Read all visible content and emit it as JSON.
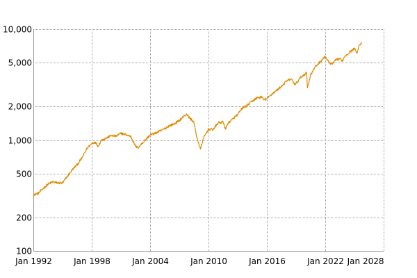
{
  "chart_data": {
    "type": "line",
    "title": "",
    "xlabel": "",
    "ylabel": "",
    "y_scale": "log",
    "grid": true,
    "legend": "none",
    "line_color": "#e08a00",
    "grid_color": "#999999",
    "xlim": [
      "Jan 1992",
      "Jan 2028"
    ],
    "ylim": [
      100,
      10000
    ],
    "x_ticks": [
      {
        "date": "1992-01",
        "label": "Jan 1992"
      },
      {
        "date": "1998-01",
        "label": "Jan 1998"
      },
      {
        "date": "2004-01",
        "label": "Jan 2004"
      },
      {
        "date": "2010-01",
        "label": "Jan 2010"
      },
      {
        "date": "2016-01",
        "label": "Jan 2016"
      },
      {
        "date": "2022-01",
        "label": "Jan 2022"
      },
      {
        "date": "2028-01",
        "label": "Jan 2028"
      }
    ],
    "y_ticks": [
      {
        "value": 100,
        "label": "100"
      },
      {
        "value": 200,
        "label": "200"
      },
      {
        "value": 500,
        "label": "500"
      },
      {
        "value": 1000,
        "label": "1,000"
      },
      {
        "value": 2000,
        "label": "2,000"
      },
      {
        "value": 5000,
        "label": "5,000"
      },
      {
        "value": 10000,
        "label": "10,000"
      }
    ],
    "series": [
      {
        "points": [
          [
            "1992-01",
            320
          ],
          [
            "1992-07",
            330
          ],
          [
            "1993-01",
            365
          ],
          [
            "1993-07",
            400
          ],
          [
            "1994-01",
            420
          ],
          [
            "1994-07",
            410
          ],
          [
            "1995-01",
            410
          ],
          [
            "1995-07",
            470
          ],
          [
            "1996-01",
            540
          ],
          [
            "1996-07",
            600
          ],
          [
            "1997-01",
            690
          ],
          [
            "1997-07",
            840
          ],
          [
            "1998-01",
            930
          ],
          [
            "1998-05",
            960
          ],
          [
            "1998-09",
            880
          ],
          [
            "1999-01",
            1000
          ],
          [
            "1999-07",
            1040
          ],
          [
            "2000-01",
            1100
          ],
          [
            "2000-07",
            1080
          ],
          [
            "2001-01",
            1150
          ],
          [
            "2001-07",
            1120
          ],
          [
            "2002-01",
            1080
          ],
          [
            "2002-07",
            880
          ],
          [
            "2002-10",
            850
          ],
          [
            "2003-01",
            900
          ],
          [
            "2003-07",
            1000
          ],
          [
            "2004-01",
            1110
          ],
          [
            "2004-07",
            1150
          ],
          [
            "2005-01",
            1200
          ],
          [
            "2005-07",
            1270
          ],
          [
            "2006-01",
            1350
          ],
          [
            "2006-07",
            1400
          ],
          [
            "2007-01",
            1500
          ],
          [
            "2007-07",
            1650
          ],
          [
            "2007-10",
            1720
          ],
          [
            "2008-01",
            1600
          ],
          [
            "2008-07",
            1450
          ],
          [
            "2008-10",
            1100
          ],
          [
            "2009-03",
            830
          ],
          [
            "2009-07",
            1050
          ],
          [
            "2010-01",
            1250
          ],
          [
            "2010-07",
            1250
          ],
          [
            "2011-01",
            1430
          ],
          [
            "2011-07",
            1450
          ],
          [
            "2011-10",
            1250
          ],
          [
            "2012-01",
            1420
          ],
          [
            "2012-07",
            1550
          ],
          [
            "2013-01",
            1700
          ],
          [
            "2013-07",
            1950
          ],
          [
            "2014-01",
            2050
          ],
          [
            "2014-07",
            2250
          ],
          [
            "2015-01",
            2400
          ],
          [
            "2015-07",
            2450
          ],
          [
            "2015-09",
            2300
          ],
          [
            "2016-01",
            2350
          ],
          [
            "2016-07",
            2600
          ],
          [
            "2017-01",
            2800
          ],
          [
            "2017-07",
            3050
          ],
          [
            "2018-01",
            3400
          ],
          [
            "2018-07",
            3550
          ],
          [
            "2018-12",
            3150
          ],
          [
            "2019-07",
            3700
          ],
          [
            "2020-02",
            4050
          ],
          [
            "2020-03",
            2950
          ],
          [
            "2020-07",
            3900
          ],
          [
            "2021-01",
            4600
          ],
          [
            "2021-07",
            5100
          ],
          [
            "2022-01",
            5650
          ],
          [
            "2022-06",
            4950
          ],
          [
            "2022-10",
            4850
          ],
          [
            "2023-01",
            5200
          ],
          [
            "2023-07",
            5450
          ],
          [
            "2023-10",
            5150
          ],
          [
            "2024-01",
            5700
          ],
          [
            "2024-07",
            6200
          ],
          [
            "2025-01",
            6700
          ],
          [
            "2025-04",
            6100
          ],
          [
            "2025-07",
            7200
          ],
          [
            "2025-10",
            7600
          ]
        ]
      }
    ]
  }
}
